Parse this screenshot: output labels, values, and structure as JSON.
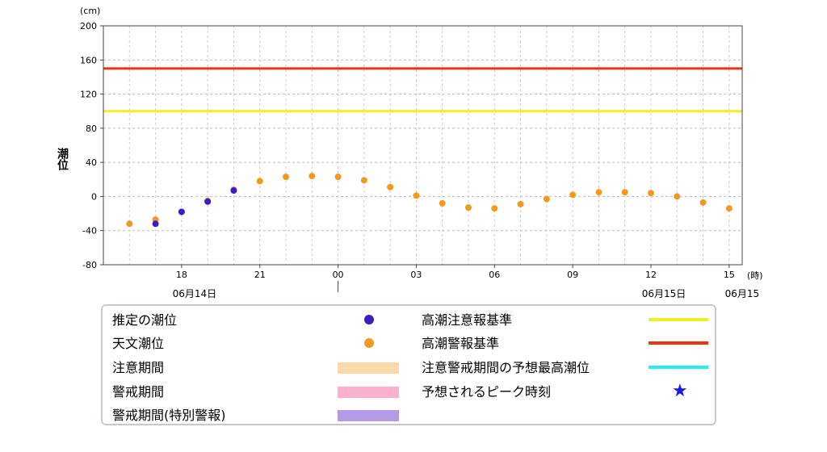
{
  "chart_data": {
    "type": "scatter",
    "y_unit": "(cm)",
    "x_unit": "(時)",
    "ylabel": "潮位",
    "ylim": [
      -80,
      200
    ],
    "y_ticks": [
      -80,
      -40,
      0,
      40,
      80,
      120,
      160,
      200
    ],
    "x_range_hours": [
      15,
      39.5
    ],
    "x_tick_labels": [
      {
        "hour": 18,
        "label": "18"
      },
      {
        "hour": 21,
        "label": "21"
      },
      {
        "hour": 24,
        "label": "00"
      },
      {
        "hour": 27,
        "label": "03"
      },
      {
        "hour": 30,
        "label": "06"
      },
      {
        "hour": 33,
        "label": "09"
      },
      {
        "hour": 36,
        "label": "12"
      },
      {
        "hour": 39,
        "label": "15"
      }
    ],
    "date_labels": [
      {
        "hour": 18,
        "label": "06月14日"
      },
      {
        "hour": 36,
        "label": "06月15日"
      },
      {
        "hour": 39,
        "label": "06月15"
      }
    ],
    "grid": true,
    "thresholds": [
      {
        "name": "高潮警報基準",
        "value": 150,
        "color": "#ee3311"
      },
      {
        "name": "高潮注意報基準",
        "value": 100,
        "color": "#eeee22"
      }
    ],
    "series": [
      {
        "name": "天文潮位",
        "color": "#f39a1e",
        "x": [
          16,
          17,
          18,
          19,
          20,
          21,
          22,
          23,
          24,
          25,
          26,
          27,
          28,
          29,
          30,
          31,
          32,
          33,
          34,
          35,
          36,
          37,
          38,
          39
        ],
        "y": [
          -32,
          -27,
          -18,
          -5,
          8,
          18,
          23,
          24,
          23,
          19,
          11,
          1,
          -8,
          -13,
          -14,
          -9,
          -3,
          2,
          5,
          5,
          4,
          0,
          -7,
          -14
        ]
      },
      {
        "name": "推定の潮位",
        "color": "#3a1ec4",
        "x": [
          17,
          18,
          19,
          20
        ],
        "y": [
          -32,
          -18,
          -6,
          7
        ]
      }
    ]
  },
  "legend": {
    "estimated": "推定の潮位",
    "astronomical": "天文潮位",
    "caution_period": "注意期間",
    "warning_period": "警戒期間",
    "special_warning_period": "警戒期間(特別警報)",
    "storm_surge_advisory": "高潮注意報基準",
    "storm_surge_warning": "高潮警報基準",
    "predicted_max": "注意警戒期間の予想最高潮位",
    "peak_time": "予想されるピーク時刻"
  },
  "colors": {
    "caution_period": "#fbd9a8",
    "warning_period": "#fbb1cc",
    "special_warning_period": "#b59be6",
    "predicted_max": "#22eeee",
    "peak_star": "#1a1ae6"
  }
}
